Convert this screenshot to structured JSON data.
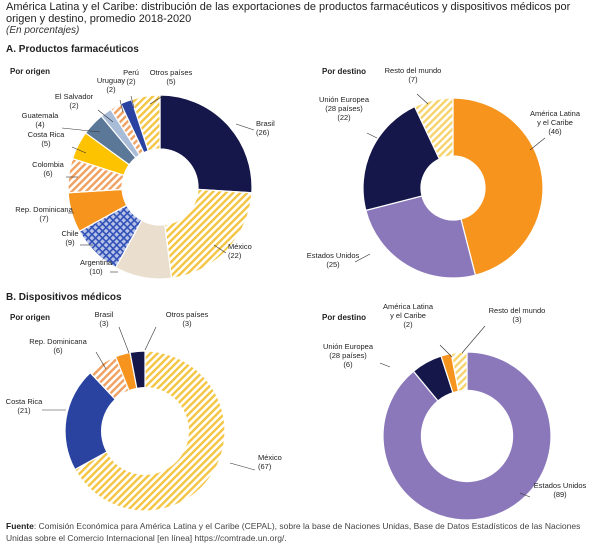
{
  "header": {
    "title": "América Latina y el Caribe: distribución de las exportaciones de productos farmacéuticos y dispositivos médicos por origen y destino, promedio 2018-2020",
    "subtitle": "(En porcentajes)"
  },
  "sections": [
    {
      "label": "A. Productos farmacéuticos"
    },
    {
      "label": "B. Dispositivos médicos"
    }
  ],
  "colors": {
    "navy": "#15174a",
    "gold_hatch": "#f4c542",
    "cream": "#eadfcf",
    "blue_hatch": "#3050b8",
    "orange": "#f7941d",
    "orange_hatch": "#f0a060",
    "yellow": "#fdc300",
    "slate": "#5b7898",
    "light_blue": "#a8bcd8",
    "royal_blue": "#2a43a0",
    "gray": "#a6a6a6",
    "purple": "#8b78bb",
    "light_gold": "#f6d36b"
  },
  "chart_data": [
    {
      "type": "pie",
      "donut": true,
      "title": "Por origen",
      "slices": [
        {
          "label": "Brasil",
          "value": 26,
          "fill": "solid",
          "color": "#15174a"
        },
        {
          "label": "México",
          "value": 22,
          "fill": "hatch",
          "color": "#f4c542"
        },
        {
          "label": "Argentina",
          "value": 10,
          "fill": "solid",
          "color": "#eadfcf"
        },
        {
          "label": "Chile",
          "value": 9,
          "fill": "check",
          "color": "#3050b8"
        },
        {
          "label": "Rep. Dominicana",
          "value": 7,
          "fill": "solid",
          "color": "#f7941d"
        },
        {
          "label": "Colombia",
          "value": 6,
          "fill": "hatch",
          "color": "#f0a060"
        },
        {
          "label": "Costa Rica",
          "value": 5,
          "fill": "solid",
          "color": "#fdc300"
        },
        {
          "label": "Guatemala",
          "value": 4,
          "fill": "solid",
          "color": "#5b7898"
        },
        {
          "label": "El Salvador",
          "value": 2,
          "fill": "solid",
          "color": "#a8bcd8"
        },
        {
          "label": "Uruguay",
          "value": 2,
          "fill": "hatch",
          "color": "#f0a060"
        },
        {
          "label": "Perú",
          "value": 2,
          "fill": "solid",
          "color": "#2a43a0"
        },
        {
          "label": "Otros países",
          "value": 5,
          "fill": "hatch",
          "color": "#f4c542"
        }
      ]
    },
    {
      "type": "pie",
      "donut": true,
      "title": "Por destino",
      "slices": [
        {
          "label": "América Latina y el Caribe",
          "value": 46,
          "fill": "solid",
          "color": "#f7941d"
        },
        {
          "label": "Estados Unidos",
          "value": 25,
          "fill": "solid",
          "color": "#8b78bb"
        },
        {
          "label": "Unión Europea (28 países)",
          "value": 22,
          "fill": "solid",
          "color": "#15174a"
        },
        {
          "label": "Resto del mundo",
          "value": 7,
          "fill": "hatch",
          "color": "#f6d36b"
        }
      ]
    },
    {
      "type": "pie",
      "donut": true,
      "title": "Por origen",
      "slices": [
        {
          "label": "México",
          "value": 67,
          "fill": "hatch",
          "color": "#f4c542"
        },
        {
          "label": "Costa Rica",
          "value": 21,
          "fill": "solid",
          "color": "#2a43a0"
        },
        {
          "label": "Rep. Dominicana",
          "value": 6,
          "fill": "hatch",
          "color": "#f0a060"
        },
        {
          "label": "Brasil",
          "value": 3,
          "fill": "solid",
          "color": "#f7941d"
        },
        {
          "label": "Otros países",
          "value": 3,
          "fill": "solid",
          "color": "#15174a"
        }
      ]
    },
    {
      "type": "pie",
      "donut": true,
      "title": "Por destino",
      "slices": [
        {
          "label": "Estados Unidos",
          "value": 89,
          "fill": "solid",
          "color": "#8b78bb"
        },
        {
          "label": "Unión Europea (28 países)",
          "value": 6,
          "fill": "solid",
          "color": "#15174a"
        },
        {
          "label": "América Latina y el Caribe",
          "value": 2,
          "fill": "solid",
          "color": "#f7941d"
        },
        {
          "label": "Resto del mundo",
          "value": 3,
          "fill": "hatch",
          "color": "#f6d36b"
        }
      ]
    }
  ],
  "source": {
    "label": "Fuente",
    "text": "Comisión Económica para América Latina y el Caribe (CEPAL), sobre la base de Naciones Unidas, Base de Datos Estadísticos de las Naciones Unidas sobre el Comercio Internacional [en línea] https://comtrade.un.org/."
  }
}
